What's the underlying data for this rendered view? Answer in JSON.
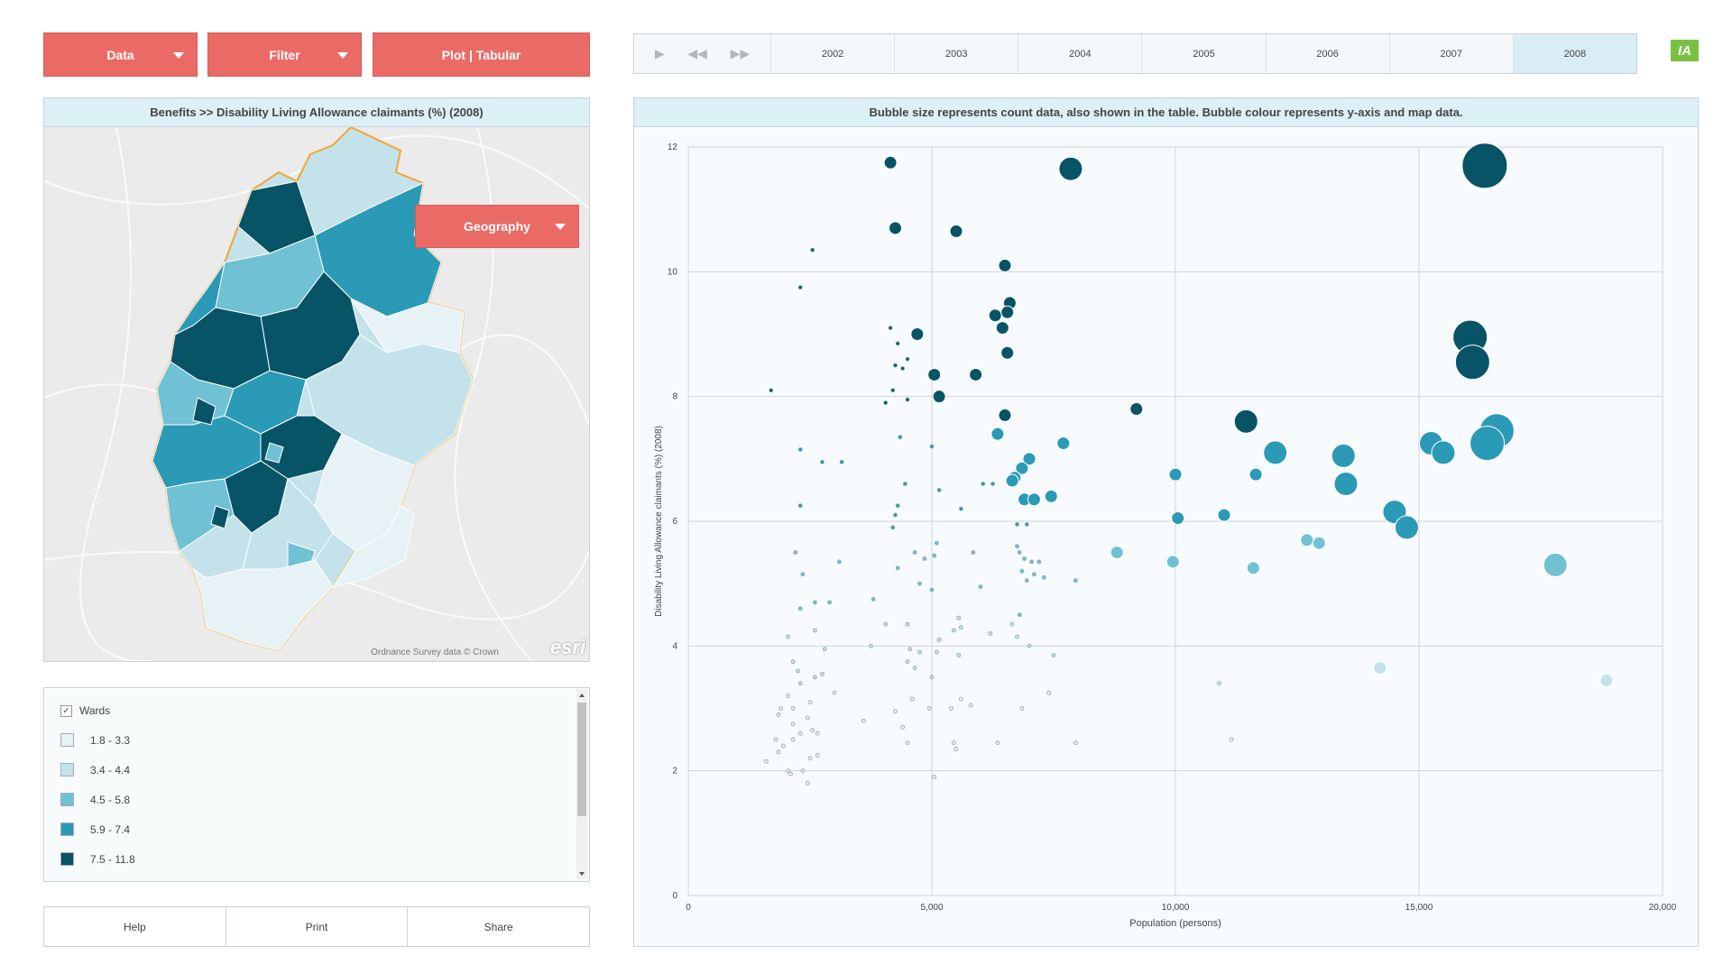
{
  "toolbar": {
    "data_label": "Data",
    "filter_label": "Filter",
    "plot_label": "Plot | Tabular"
  },
  "timebar": {
    "years": [
      "2002",
      "2003",
      "2004",
      "2005",
      "2006",
      "2007",
      "2008"
    ],
    "active_year": "2008",
    "controls": [
      "play-icon",
      "step-back-icon",
      "step-forward-icon"
    ]
  },
  "logo": {
    "text": "IA",
    "color": "#7ac143"
  },
  "map": {
    "title": "Benefits >>  Disability Living Allowance claimants (%) (2008)",
    "geography_label": "Geography",
    "credit": "Ordnance Survey data © Crown",
    "esri": "esri"
  },
  "legend": {
    "layer_label": "Wards",
    "layer_checked": true,
    "items": [
      {
        "label": "1.8 - 3.3",
        "color": "#e6f2f5"
      },
      {
        "label": "3.4 - 4.4",
        "color": "#c3e2ea"
      },
      {
        "label": "4.5 - 5.8",
        "color": "#6fc1d3"
      },
      {
        "label": "5.9 - 7.4",
        "color": "#2a9ab6"
      },
      {
        "label": "7.5 - 11.8",
        "color": "#075466"
      }
    ]
  },
  "footer": {
    "help_label": "Help",
    "print_label": "Print",
    "share_label": "Share"
  },
  "chart_title": "Bubble size represents count data, also shown in the table. Bubble colour represents y-axis and map data.",
  "chart_data": {
    "type": "scatter",
    "xlabel": "Population (persons)",
    "ylabel": "Disability Living Allowance claimants (%) (2008)",
    "xlim": [
      0,
      20000
    ],
    "ylim": [
      0,
      12
    ],
    "xticks": [
      0,
      5000,
      10000,
      15000,
      20000
    ],
    "xtick_labels": [
      "0",
      "5,000",
      "10,000",
      "15,000",
      "20,000"
    ],
    "yticks": [
      0,
      2,
      4,
      6,
      8,
      10,
      12
    ],
    "grid": true,
    "points": [
      {
        "x": 4150,
        "y": 11.75,
        "r": 7
      },
      {
        "x": 7850,
        "y": 11.65,
        "r": 13
      },
      {
        "x": 16350,
        "y": 11.7,
        "r": 25
      },
      {
        "x": 4250,
        "y": 10.7,
        "r": 7
      },
      {
        "x": 5500,
        "y": 10.65,
        "r": 7
      },
      {
        "x": 2550,
        "y": 10.35,
        "r": 2
      },
      {
        "x": 6500,
        "y": 10.1,
        "r": 7
      },
      {
        "x": 2300,
        "y": 9.75,
        "r": 2
      },
      {
        "x": 6600,
        "y": 9.5,
        "r": 7
      },
      {
        "x": 6550,
        "y": 9.35,
        "r": 7
      },
      {
        "x": 6300,
        "y": 9.3,
        "r": 7
      },
      {
        "x": 6450,
        "y": 9.1,
        "r": 7
      },
      {
        "x": 4150,
        "y": 9.1,
        "r": 2
      },
      {
        "x": 4700,
        "y": 9.0,
        "r": 7
      },
      {
        "x": 4300,
        "y": 8.85,
        "r": 2
      },
      {
        "x": 16050,
        "y": 8.95,
        "r": 19
      },
      {
        "x": 16100,
        "y": 8.55,
        "r": 19
      },
      {
        "x": 6550,
        "y": 8.7,
        "r": 7
      },
      {
        "x": 4500,
        "y": 8.6,
        "r": 2
      },
      {
        "x": 4250,
        "y": 8.5,
        "r": 2
      },
      {
        "x": 4400,
        "y": 8.45,
        "r": 2
      },
      {
        "x": 5900,
        "y": 8.35,
        "r": 7
      },
      {
        "x": 5050,
        "y": 8.35,
        "r": 7
      },
      {
        "x": 4200,
        "y": 8.1,
        "r": 2
      },
      {
        "x": 1700,
        "y": 8.1,
        "r": 2
      },
      {
        "x": 5150,
        "y": 8.0,
        "r": 7
      },
      {
        "x": 4050,
        "y": 7.9,
        "r": 2
      },
      {
        "x": 4500,
        "y": 7.95,
        "r": 2
      },
      {
        "x": 9200,
        "y": 7.8,
        "r": 7
      },
      {
        "x": 6500,
        "y": 7.7,
        "r": 7
      },
      {
        "x": 11450,
        "y": 7.6,
        "r": 13
      },
      {
        "x": 16600,
        "y": 7.45,
        "r": 19
      },
      {
        "x": 6350,
        "y": 7.4,
        "r": 7
      },
      {
        "x": 4350,
        "y": 7.35,
        "r": 2
      },
      {
        "x": 7700,
        "y": 7.25,
        "r": 7
      },
      {
        "x": 15250,
        "y": 7.25,
        "r": 13
      },
      {
        "x": 16400,
        "y": 7.25,
        "r": 19
      },
      {
        "x": 12050,
        "y": 7.1,
        "r": 13
      },
      {
        "x": 15500,
        "y": 7.1,
        "r": 13
      },
      {
        "x": 13450,
        "y": 7.05,
        "r": 13
      },
      {
        "x": 2300,
        "y": 7.15,
        "r": 2
      },
      {
        "x": 5000,
        "y": 7.2,
        "r": 2
      },
      {
        "x": 7000,
        "y": 7.0,
        "r": 7
      },
      {
        "x": 6850,
        "y": 6.85,
        "r": 7
      },
      {
        "x": 2750,
        "y": 6.95,
        "r": 2
      },
      {
        "x": 3150,
        "y": 6.95,
        "r": 2
      },
      {
        "x": 11650,
        "y": 6.75,
        "r": 7
      },
      {
        "x": 10000,
        "y": 6.75,
        "r": 7
      },
      {
        "x": 6700,
        "y": 6.7,
        "r": 7
      },
      {
        "x": 6650,
        "y": 6.65,
        "r": 7
      },
      {
        "x": 13500,
        "y": 6.6,
        "r": 13
      },
      {
        "x": 6250,
        "y": 6.6,
        "r": 2
      },
      {
        "x": 4450,
        "y": 6.6,
        "r": 2
      },
      {
        "x": 5150,
        "y": 6.5,
        "r": 2
      },
      {
        "x": 6050,
        "y": 6.6,
        "r": 2
      },
      {
        "x": 7450,
        "y": 6.4,
        "r": 7
      },
      {
        "x": 6900,
        "y": 6.35,
        "r": 7
      },
      {
        "x": 7100,
        "y": 6.35,
        "r": 7
      },
      {
        "x": 2300,
        "y": 6.25,
        "r": 2
      },
      {
        "x": 4300,
        "y": 6.25,
        "r": 2
      },
      {
        "x": 5600,
        "y": 6.2,
        "r": 2
      },
      {
        "x": 14500,
        "y": 6.15,
        "r": 13
      },
      {
        "x": 11000,
        "y": 6.1,
        "r": 7
      },
      {
        "x": 10050,
        "y": 6.05,
        "r": 7
      },
      {
        "x": 4250,
        "y": 6.1,
        "r": 2
      },
      {
        "x": 6750,
        "y": 5.95,
        "r": 2
      },
      {
        "x": 14750,
        "y": 5.9,
        "r": 13
      },
      {
        "x": 4200,
        "y": 5.9,
        "r": 2
      },
      {
        "x": 6950,
        "y": 5.95,
        "r": 2
      },
      {
        "x": 12700,
        "y": 5.7,
        "r": 7
      },
      {
        "x": 12950,
        "y": 5.65,
        "r": 7
      },
      {
        "x": 5100,
        "y": 5.65,
        "r": 2
      },
      {
        "x": 6750,
        "y": 5.6,
        "r": 2
      },
      {
        "x": 8800,
        "y": 5.5,
        "r": 7
      },
      {
        "x": 2200,
        "y": 5.5,
        "r": 2
      },
      {
        "x": 4650,
        "y": 5.5,
        "r": 2
      },
      {
        "x": 5850,
        "y": 5.5,
        "r": 2
      },
      {
        "x": 6800,
        "y": 5.5,
        "r": 2
      },
      {
        "x": 4850,
        "y": 5.4,
        "r": 2
      },
      {
        "x": 5050,
        "y": 5.45,
        "r": 2
      },
      {
        "x": 6900,
        "y": 5.4,
        "r": 2
      },
      {
        "x": 7050,
        "y": 5.35,
        "r": 2
      },
      {
        "x": 7200,
        "y": 5.35,
        "r": 2
      },
      {
        "x": 3100,
        "y": 5.35,
        "r": 2
      },
      {
        "x": 9950,
        "y": 5.35,
        "r": 7
      },
      {
        "x": 17800,
        "y": 5.3,
        "r": 13
      },
      {
        "x": 11600,
        "y": 5.25,
        "r": 7
      },
      {
        "x": 4300,
        "y": 5.25,
        "r": 2
      },
      {
        "x": 6850,
        "y": 5.2,
        "r": 2
      },
      {
        "x": 2350,
        "y": 5.15,
        "r": 2
      },
      {
        "x": 7100,
        "y": 5.15,
        "r": 2
      },
      {
        "x": 7300,
        "y": 5.1,
        "r": 2
      },
      {
        "x": 7950,
        "y": 5.05,
        "r": 2
      },
      {
        "x": 6950,
        "y": 5.05,
        "r": 2
      },
      {
        "x": 4750,
        "y": 5.0,
        "r": 2
      },
      {
        "x": 6000,
        "y": 4.95,
        "r": 2
      },
      {
        "x": 5000,
        "y": 4.9,
        "r": 2
      },
      {
        "x": 3800,
        "y": 4.75,
        "r": 2
      },
      {
        "x": 2600,
        "y": 4.7,
        "r": 2
      },
      {
        "x": 2900,
        "y": 4.7,
        "r": 2
      },
      {
        "x": 2300,
        "y": 4.6,
        "r": 2
      },
      {
        "x": 6800,
        "y": 4.5,
        "r": 2
      },
      {
        "x": 5550,
        "y": 4.45,
        "r": 2
      },
      {
        "x": 4050,
        "y": 4.35,
        "r": 2
      },
      {
        "x": 4500,
        "y": 4.35,
        "r": 2
      },
      {
        "x": 6650,
        "y": 4.35,
        "r": 2
      },
      {
        "x": 5600,
        "y": 4.3,
        "r": 2
      },
      {
        "x": 2600,
        "y": 4.25,
        "r": 2
      },
      {
        "x": 5450,
        "y": 4.25,
        "r": 2
      },
      {
        "x": 6200,
        "y": 4.2,
        "r": 2
      },
      {
        "x": 2050,
        "y": 4.15,
        "r": 2
      },
      {
        "x": 5150,
        "y": 4.1,
        "r": 2
      },
      {
        "x": 6750,
        "y": 4.15,
        "r": 2
      },
      {
        "x": 7000,
        "y": 4.0,
        "r": 2
      },
      {
        "x": 3750,
        "y": 4.0,
        "r": 2
      },
      {
        "x": 4550,
        "y": 3.95,
        "r": 2
      },
      {
        "x": 2800,
        "y": 3.95,
        "r": 2
      },
      {
        "x": 4750,
        "y": 3.9,
        "r": 2
      },
      {
        "x": 5100,
        "y": 3.9,
        "r": 2
      },
      {
        "x": 5550,
        "y": 3.85,
        "r": 2
      },
      {
        "x": 7500,
        "y": 3.85,
        "r": 2
      },
      {
        "x": 2150,
        "y": 3.75,
        "r": 2
      },
      {
        "x": 4500,
        "y": 3.75,
        "r": 2
      },
      {
        "x": 4650,
        "y": 3.65,
        "r": 2
      },
      {
        "x": 14200,
        "y": 3.65,
        "r": 7
      },
      {
        "x": 2250,
        "y": 3.6,
        "r": 2
      },
      {
        "x": 2600,
        "y": 3.5,
        "r": 2
      },
      {
        "x": 2750,
        "y": 3.55,
        "r": 2
      },
      {
        "x": 5000,
        "y": 3.5,
        "r": 2
      },
      {
        "x": 18850,
        "y": 3.45,
        "r": 7
      },
      {
        "x": 2300,
        "y": 3.4,
        "r": 2
      },
      {
        "x": 10900,
        "y": 3.4,
        "r": 2
      },
      {
        "x": 3000,
        "y": 3.25,
        "r": 2
      },
      {
        "x": 7400,
        "y": 3.25,
        "r": 2
      },
      {
        "x": 2050,
        "y": 3.2,
        "r": 2
      },
      {
        "x": 2500,
        "y": 3.1,
        "r": 2
      },
      {
        "x": 4600,
        "y": 3.15,
        "r": 2
      },
      {
        "x": 5600,
        "y": 3.15,
        "r": 2
      },
      {
        "x": 5800,
        "y": 3.05,
        "r": 2
      },
      {
        "x": 1900,
        "y": 3.0,
        "r": 2
      },
      {
        "x": 2150,
        "y": 3.0,
        "r": 2
      },
      {
        "x": 6850,
        "y": 3.0,
        "r": 2
      },
      {
        "x": 5400,
        "y": 3.0,
        "r": 2
      },
      {
        "x": 4250,
        "y": 2.95,
        "r": 2
      },
      {
        "x": 4950,
        "y": 3.0,
        "r": 2
      },
      {
        "x": 1850,
        "y": 2.9,
        "r": 2
      },
      {
        "x": 2450,
        "y": 2.85,
        "r": 2
      },
      {
        "x": 3600,
        "y": 2.8,
        "r": 2
      },
      {
        "x": 2150,
        "y": 2.75,
        "r": 2
      },
      {
        "x": 4400,
        "y": 2.7,
        "r": 2
      },
      {
        "x": 2550,
        "y": 2.65,
        "r": 2
      },
      {
        "x": 2650,
        "y": 2.6,
        "r": 2
      },
      {
        "x": 2300,
        "y": 2.6,
        "r": 2
      },
      {
        "x": 1800,
        "y": 2.5,
        "r": 2
      },
      {
        "x": 2150,
        "y": 2.5,
        "r": 2
      },
      {
        "x": 4500,
        "y": 2.45,
        "r": 2
      },
      {
        "x": 5450,
        "y": 2.45,
        "r": 2
      },
      {
        "x": 6350,
        "y": 2.45,
        "r": 2
      },
      {
        "x": 7950,
        "y": 2.45,
        "r": 2
      },
      {
        "x": 11150,
        "y": 2.5,
        "r": 2
      },
      {
        "x": 1950,
        "y": 2.4,
        "r": 2
      },
      {
        "x": 5500,
        "y": 2.35,
        "r": 2
      },
      {
        "x": 1850,
        "y": 2.3,
        "r": 2
      },
      {
        "x": 2650,
        "y": 2.25,
        "r": 2
      },
      {
        "x": 2500,
        "y": 2.2,
        "r": 2
      },
      {
        "x": 1600,
        "y": 2.15,
        "r": 2
      },
      {
        "x": 2050,
        "y": 2.0,
        "r": 2
      },
      {
        "x": 2350,
        "y": 2.0,
        "r": 2
      },
      {
        "x": 2100,
        "y": 1.95,
        "r": 2
      },
      {
        "x": 5050,
        "y": 1.9,
        "r": 2
      },
      {
        "x": 2450,
        "y": 1.8,
        "r": 2
      }
    ]
  }
}
